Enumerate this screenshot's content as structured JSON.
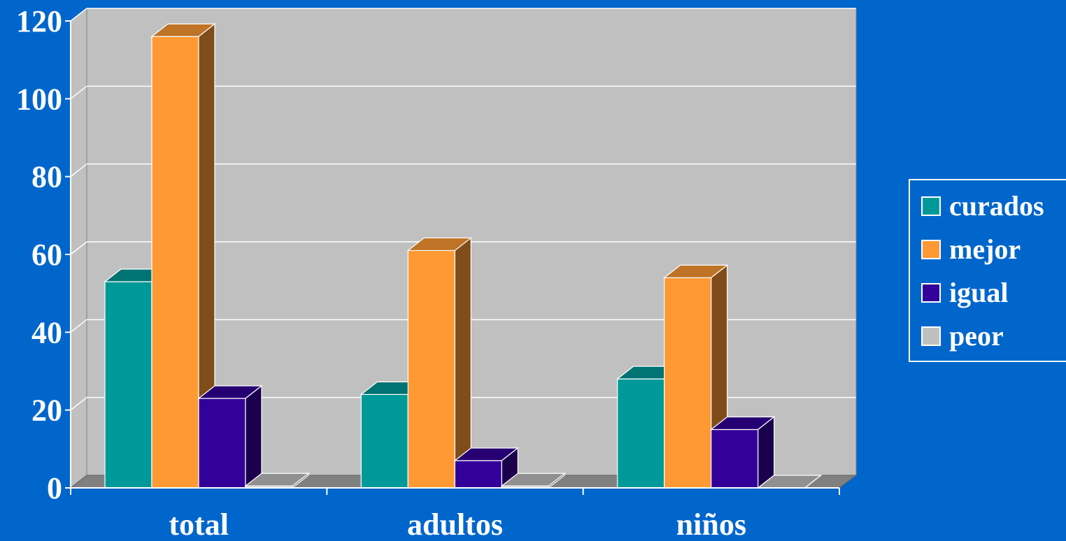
{
  "chart_data": {
    "type": "bar",
    "categories": [
      "total",
      "adultos",
      "niños"
    ],
    "series": [
      {
        "name": "curados",
        "values": [
          53,
          24,
          28
        ],
        "color": "#009999"
      },
      {
        "name": "mejor",
        "values": [
          116,
          61,
          54
        ],
        "color": "#FF9933"
      },
      {
        "name": "igual",
        "values": [
          23,
          7,
          15
        ],
        "color": "#330099"
      },
      {
        "name": "peor",
        "values": [
          0.5,
          0.5,
          0
        ],
        "color": "#C0C0C0"
      }
    ],
    "yticks": [
      0,
      20,
      40,
      60,
      80,
      100,
      120
    ],
    "ylim": [
      0,
      120
    ],
    "grid": true,
    "legend_position": "right",
    "three_d": true
  },
  "legend": {
    "items": [
      "curados",
      "mejor",
      "igual",
      "peor"
    ]
  }
}
